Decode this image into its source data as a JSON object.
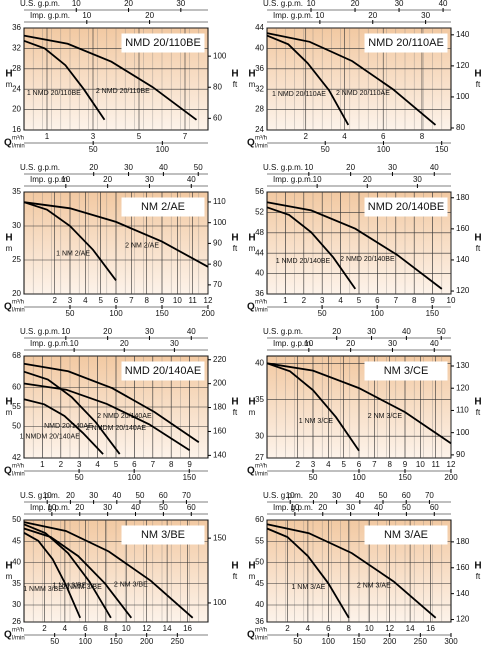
{
  "chart_data": [
    {
      "type": "line",
      "title": "NMD 20/110BE",
      "y_label": "H",
      "y_unit": "m",
      "y2_label": "H",
      "y2_unit": "ft",
      "x_label": "Q",
      "x_unit": "m³/h",
      "x_unit2": "l/min",
      "usgpm_label": "U.S. g.p.m.",
      "impgpm_label": "Imp. g.p.m.",
      "xlim": [
        0,
        8
      ],
      "xticks": [
        1,
        3,
        5,
        7
      ],
      "lmin_lim": [
        0,
        133
      ],
      "lmin_ticks": [
        50,
        100
      ],
      "usgpm_lim": [
        0,
        35.2
      ],
      "usgpm_ticks": [
        10,
        20,
        30
      ],
      "impgpm_lim": [
        0,
        29.3
      ],
      "impgpm_ticks": [
        10,
        20
      ],
      "ylim": [
        16,
        36
      ],
      "yticks": [
        16,
        20,
        24,
        28,
        32,
        36
      ],
      "y2lim": [
        52.5,
        118.1
      ],
      "y2ticks": [
        60,
        80,
        100
      ],
      "grid": true,
      "series": [
        {
          "name": "1 NMD 20/110BE",
          "color": "#000000",
          "x": [
            0,
            0.9,
            1.8,
            2.6,
            3.5
          ],
          "values": [
            33.5,
            32.0,
            28.7,
            24.0,
            18
          ]
        },
        {
          "name": "2 NMD 20/110BE",
          "color": "#000000",
          "x": [
            0,
            1.9,
            3.8,
            5.6,
            7.5
          ],
          "values": [
            34.5,
            32.9,
            29.4,
            24.4,
            18
          ]
        }
      ]
    },
    {
      "type": "line",
      "title": "NMD 20/110AE",
      "y_label": "H",
      "y_unit": "m",
      "y2_label": "H",
      "y2_unit": "ft",
      "x_label": "Q",
      "x_unit": "m³/h",
      "x_unit2": "l/min",
      "usgpm_label": "U.S. g.p.m.",
      "impgpm_label": "Imp. g.p.m.",
      "xlim": [
        0,
        9.5
      ],
      "xticks": [
        2,
        4,
        6,
        8
      ],
      "lmin_lim": [
        0,
        158
      ],
      "lmin_ticks": [
        50,
        100,
        150
      ],
      "usgpm_lim": [
        0,
        41.8
      ],
      "usgpm_ticks": [
        10,
        20,
        30,
        40
      ],
      "impgpm_lim": [
        0,
        34.8
      ],
      "impgpm_ticks": [
        10,
        20,
        30
      ],
      "ylim": [
        24,
        44
      ],
      "yticks": [
        24,
        28,
        32,
        36,
        40,
        44
      ],
      "y2lim": [
        78.7,
        144.4
      ],
      "y2ticks": [
        80,
        100,
        120,
        140
      ],
      "grid": true,
      "series": [
        {
          "name": "1 NMD 20/110AE",
          "color": "#000000",
          "x": [
            0,
            1.1,
            2.1,
            3.2,
            4.2
          ],
          "values": [
            42.5,
            40.8,
            37.1,
            31.8,
            25
          ]
        },
        {
          "name": "2 NMD 20/110AE",
          "color": "#000000",
          "x": [
            0,
            2.2,
            4.4,
            6.5,
            8.7
          ],
          "values": [
            43,
            41.3,
            37.5,
            32.0,
            25
          ]
        }
      ]
    },
    {
      "type": "line",
      "title": "NM 2/AE",
      "y_label": "H",
      "y_unit": "m",
      "y2_label": "H",
      "y2_unit": "ft",
      "x_label": "Q",
      "x_unit": "m³/h",
      "x_unit2": "l/min",
      "usgpm_label": "U.S. g.p.m.",
      "impgpm_label": "Imp. g.p.m.",
      "xlim": [
        0,
        12
      ],
      "xticks": [
        2,
        3,
        4,
        5,
        6,
        7,
        8,
        9,
        10,
        11,
        12
      ],
      "lmin_lim": [
        0,
        200
      ],
      "lmin_ticks": [
        50,
        100,
        150,
        200
      ],
      "usgpm_lim": [
        0,
        52.8
      ],
      "usgpm_ticks": [
        20,
        30,
        40,
        50
      ],
      "impgpm_lim": [
        0,
        44
      ],
      "impgpm_ticks": [
        10,
        20,
        30,
        40
      ],
      "ylim": [
        20,
        35
      ],
      "yticks": [
        20,
        25,
        30,
        35
      ],
      "y2lim": [
        65.6,
        114.8
      ],
      "y2ticks": [
        70,
        80,
        90,
        100,
        110
      ],
      "grid": true,
      "series": [
        {
          "name": "1 NM 2/AE",
          "color": "#000000",
          "x": [
            0,
            1.5,
            3,
            4.5,
            6
          ],
          "values": [
            33.5,
            32.4,
            30.0,
            26.5,
            22
          ]
        },
        {
          "name": "2 NM 2/AE",
          "color": "#000000",
          "x": [
            0,
            3,
            6,
            9,
            12
          ],
          "values": [
            33.5,
            32.6,
            30.6,
            27.7,
            24
          ]
        }
      ]
    },
    {
      "type": "line",
      "title": "NMD 20/140BE",
      "y_label": "H",
      "y_unit": "m",
      "y2_label": "H",
      "y2_unit": "ft",
      "x_label": "Q",
      "x_unit": "m³/h",
      "x_unit2": "l/min",
      "usgpm_label": "U.S. g.p.m.",
      "impgpm_label": "Imp. g.p.m.",
      "xlim": [
        0,
        10
      ],
      "xticks": [
        1,
        2,
        3,
        4,
        5,
        6,
        7,
        8,
        9,
        10
      ],
      "lmin_lim": [
        0,
        167
      ],
      "lmin_ticks": [
        50,
        100,
        150
      ],
      "usgpm_lim": [
        0,
        44
      ],
      "usgpm_ticks": [
        10,
        20,
        30,
        40
      ],
      "impgpm_lim": [
        0,
        36.7
      ],
      "impgpm_ticks": [
        10,
        20,
        30
      ],
      "ylim": [
        36,
        56
      ],
      "yticks": [
        36,
        40,
        44,
        48,
        52,
        56
      ],
      "y2lim": [
        118.1,
        183.7
      ],
      "y2ticks": [
        120,
        140,
        160,
        180
      ],
      "grid": true,
      "series": [
        {
          "name": "1 NMD 20/140BE",
          "color": "#000000",
          "x": [
            0,
            1.2,
            2.4,
            3.6,
            4.8
          ],
          "values": [
            53,
            51.5,
            48.1,
            43.2,
            37
          ]
        },
        {
          "name": "2 NMD 20/140BE",
          "color": "#000000",
          "x": [
            0,
            2.4,
            4.8,
            7.1,
            9.5
          ],
          "values": [
            54,
            52.4,
            48.8,
            43.6,
            37
          ]
        }
      ]
    },
    {
      "type": "line",
      "title": "NMD 20/140AE",
      "y_label": "H",
      "y_unit": "m",
      "y2_label": "H",
      "y2_unit": "ft",
      "x_label": "Q",
      "x_unit": "m³/h",
      "x_unit2": "l/min",
      "usgpm_label": "U.S. g.p.m.",
      "impgpm_label": "Imp. g.p.m.",
      "xlim": [
        0,
        10
      ],
      "xticks": [
        1,
        2,
        3,
        4,
        5,
        6,
        7,
        8,
        9
      ],
      "lmin_lim": [
        0,
        167
      ],
      "lmin_ticks": [
        50,
        100,
        150
      ],
      "usgpm_lim": [
        0,
        44
      ],
      "usgpm_ticks": [
        10,
        20,
        30,
        40
      ],
      "impgpm_lim": [
        0,
        36.7
      ],
      "impgpm_ticks": [
        10,
        20,
        30
      ],
      "ylim": [
        42,
        68
      ],
      "yticks": [
        42,
        50,
        55,
        60,
        68
      ],
      "y2lim": [
        137.8,
        223.1
      ],
      "y2ticks": [
        140,
        160,
        180,
        200,
        220
      ],
      "grid": true,
      "series": [
        {
          "name": "2 NMD 20/140AE",
          "color": "#000000",
          "x": [
            0,
            2.4,
            4.8,
            7.1,
            9.5
          ],
          "values": [
            66,
            64.1,
            59.8,
            53.7,
            46
          ]
        },
        {
          "name": "NMD 20/140AE",
          "color": "#000000",
          "x": [
            0,
            1.3,
            2.6,
            3.9,
            5.2
          ],
          "values": [
            64,
            62.0,
            57.5,
            51.1,
            43
          ]
        },
        {
          "name": "2 NMDM 20/140AE",
          "color": "#000000",
          "x": [
            0,
            2.3,
            4.5,
            6.8,
            9
          ],
          "values": [
            61,
            59.4,
            55.8,
            50.6,
            44
          ]
        },
        {
          "name": "1 NMDM 20/140AE",
          "color": "#000000",
          "x": [
            0,
            1.1,
            2.2,
            3.2,
            4.3
          ],
          "values": [
            57,
            55.7,
            52.7,
            48.4,
            43
          ]
        }
      ]
    },
    {
      "type": "line",
      "title": "NM 3/CE",
      "y_label": "H",
      "y_unit": "m",
      "y2_label": "H",
      "y2_unit": "ft",
      "x_label": "Q",
      "x_unit": "m³/h",
      "x_unit2": "l/min",
      "usgpm_label": "U.S. g.p.m.",
      "impgpm_label": "Imp. g.p.m.",
      "xlim": [
        0,
        12
      ],
      "xticks": [
        2,
        3,
        4,
        5,
        6,
        7,
        8,
        9,
        10,
        11,
        12
      ],
      "lmin_lim": [
        0,
        200
      ],
      "lmin_ticks": [
        50,
        100,
        150,
        200
      ],
      "usgpm_lim": [
        0,
        52.8
      ],
      "usgpm_ticks": [
        20,
        30,
        40,
        50
      ],
      "impgpm_lim": [
        0,
        44
      ],
      "impgpm_ticks": [
        10,
        20,
        30,
        40
      ],
      "ylim": [
        27,
        41
      ],
      "yticks": [
        27,
        30,
        35,
        40
      ],
      "y2lim": [
        88.6,
        134.5
      ],
      "y2ticks": [
        90,
        100,
        110,
        120,
        130
      ],
      "grid": true,
      "series": [
        {
          "name": "1 NM 3/CE",
          "color": "#000000",
          "x": [
            0,
            1.5,
            3,
            4.5,
            6
          ],
          "values": [
            40,
            38.9,
            36.3,
            32.6,
            28
          ]
        },
        {
          "name": "2 NM 3/CE",
          "color": "#000000",
          "x": [
            0,
            3,
            6,
            9,
            12
          ],
          "values": [
            40,
            39.0,
            36.6,
            33.3,
            29
          ]
        }
      ]
    },
    {
      "type": "line",
      "title": "NM 3/BE",
      "y_label": "H",
      "y_unit": "m",
      "y2_label": "H",
      "y2_unit": "ft",
      "x_label": "Q",
      "x_unit": "m³/h",
      "x_unit2": "l/min",
      "usgpm_label": "U.S. g.p.m.",
      "impgpm_label": "Imp. g.p.m.",
      "xlim": [
        0,
        18
      ],
      "xticks": [
        2,
        4,
        6,
        8,
        10,
        12,
        14,
        16
      ],
      "lmin_lim": [
        0,
        300
      ],
      "lmin_ticks": [
        50,
        100,
        150,
        200,
        250
      ],
      "usgpm_lim": [
        0,
        79.3
      ],
      "usgpm_ticks": [
        10,
        20,
        30,
        40,
        50,
        60,
        70
      ],
      "impgpm_lim": [
        0,
        66
      ],
      "impgpm_ticks": [
        10,
        20,
        30,
        40,
        50,
        60
      ],
      "ylim": [
        26,
        50
      ],
      "yticks": [
        26,
        30,
        35,
        40,
        45,
        50
      ],
      "y2lim": [
        85.3,
        164
      ],
      "y2ticks": [
        100,
        150
      ],
      "grid": true,
      "series": [
        {
          "name": "1 NMM 3/BE",
          "color": "#000000",
          "x": [
            0,
            1.4,
            2.8,
            4.1,
            5.5
          ],
          "values": [
            47,
            45.1,
            40.8,
            34.7,
            27
          ]
        },
        {
          "name": "1 NM 3/BE",
          "color": "#000000",
          "x": [
            0,
            2.1,
            4.3,
            6.4,
            8.5
          ],
          "values": [
            49,
            46.9,
            42.2,
            35.5,
            27
          ]
        },
        {
          "name": "2 NMM 3/BE",
          "color": "#000000",
          "x": [
            0,
            2.6,
            5.3,
            7.9,
            10.5
          ],
          "values": [
            48,
            46.0,
            41.5,
            35.1,
            27
          ]
        },
        {
          "name": "2 NM 3/BE",
          "color": "#000000",
          "x": [
            0,
            4.1,
            8.3,
            12.4,
            16.5
          ],
          "values": [
            49.5,
            47.4,
            42.6,
            35.7,
            27
          ]
        }
      ]
    },
    {
      "type": "line",
      "title": "NM 3/AE",
      "y_label": "H",
      "y_unit": "m",
      "y2_label": "H",
      "y2_unit": "ft",
      "x_label": "Q",
      "x_unit": "m³/h",
      "x_unit2": "l/min",
      "usgpm_label": "U.S. g.p.m.",
      "impgpm_label": "Imp. g.p.m.",
      "xlim": [
        0,
        18
      ],
      "xticks": [
        2,
        4,
        6,
        8,
        10,
        12,
        14,
        16
      ],
      "lmin_lim": [
        0,
        300
      ],
      "lmin_ticks": [
        50,
        100,
        150,
        200,
        250,
        300
      ],
      "usgpm_lim": [
        0,
        79.3
      ],
      "usgpm_ticks": [
        10,
        20,
        30,
        40,
        50,
        60,
        70
      ],
      "impgpm_lim": [
        0,
        66
      ],
      "impgpm_ticks": [
        10,
        20,
        30,
        40,
        50,
        60
      ],
      "ylim": [
        36,
        60
      ],
      "yticks": [
        36,
        40,
        45,
        50,
        55,
        60
      ],
      "y2lim": [
        118.1,
        196.9
      ],
      "y2ticks": [
        120,
        140,
        160,
        180
      ],
      "grid": true,
      "series": [
        {
          "name": "1 NM 3/AE",
          "color": "#000000",
          "x": [
            0,
            2,
            4,
            6,
            8
          ],
          "values": [
            58,
            56.0,
            51.5,
            45.1,
            37
          ]
        },
        {
          "name": "2 NM 3/AE",
          "color": "#000000",
          "x": [
            0,
            4.1,
            8.3,
            12.4,
            16.5
          ],
          "values": [
            59,
            56.9,
            52.2,
            45.5,
            37
          ]
        }
      ]
    }
  ]
}
